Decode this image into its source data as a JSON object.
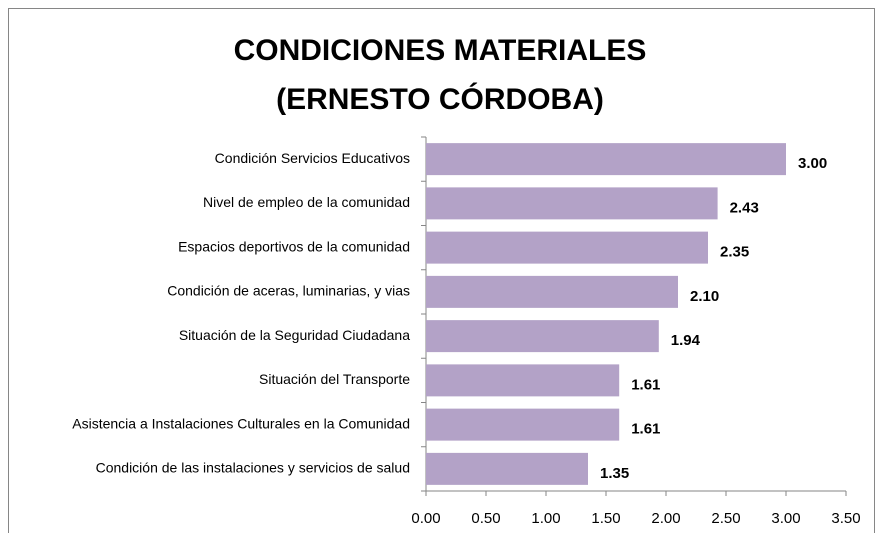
{
  "chart_data": {
    "type": "bar",
    "orientation": "horizontal",
    "title": [
      "CONDICIONES MATERIALES",
      "(ERNESTO CÓRDOBA)"
    ],
    "categories": [
      "Condición Servicios Educativos",
      "Nivel de empleo de la comunidad",
      "Espacios deportivos de la comunidad",
      "Condición de aceras, luminarias, y vias",
      "Situación de la Seguridad Ciudadana",
      "Situación del Transporte",
      "Asistencia a Instalaciones Culturales en la Comunidad",
      "Condición de las instalaciones y servicios de salud"
    ],
    "values": [
      3.0,
      2.43,
      2.35,
      2.1,
      1.94,
      1.61,
      1.61,
      1.35
    ],
    "value_labels": [
      "3.00",
      "2.43",
      "2.35",
      "2.10",
      "1.94",
      "1.61",
      "1.61",
      "1.35"
    ],
    "color": "#b3a2c7",
    "xlim": [
      0,
      3.5
    ],
    "xticks": [
      {
        "value": 0,
        "label": "0.00"
      },
      {
        "value": 0.5,
        "label": "0.50"
      },
      {
        "value": 1,
        "label": "1.00"
      },
      {
        "value": 1.5,
        "label": "1.50"
      },
      {
        "value": 2,
        "label": "2.00"
      },
      {
        "value": 2.5,
        "label": "2.50"
      },
      {
        "value": 3,
        "label": "3.00"
      },
      {
        "value": 3.5,
        "label": "3.50"
      }
    ],
    "grid": false
  }
}
